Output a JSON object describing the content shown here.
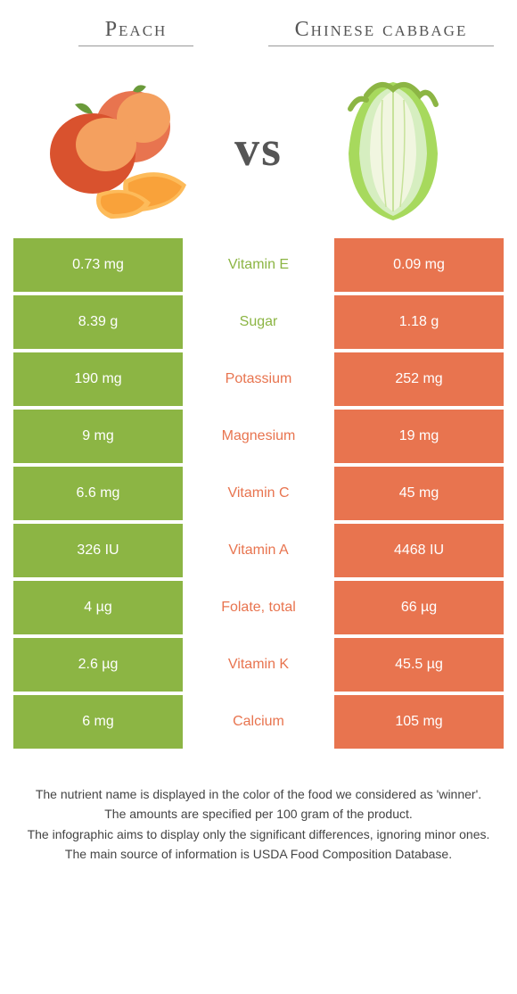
{
  "foods": {
    "left": {
      "name": "Peach",
      "color": "#8cb544"
    },
    "right": {
      "name": "Chinese cabbage",
      "color": "#e8744f"
    }
  },
  "vs_label": "vs",
  "rows": [
    {
      "nutrient": "Vitamin E",
      "left": "0.73 mg",
      "right": "0.09 mg",
      "winner": "left"
    },
    {
      "nutrient": "Sugar",
      "left": "8.39 g",
      "right": "1.18 g",
      "winner": "left"
    },
    {
      "nutrient": "Potassium",
      "left": "190 mg",
      "right": "252 mg",
      "winner": "right"
    },
    {
      "nutrient": "Magnesium",
      "left": "9 mg",
      "right": "19 mg",
      "winner": "right"
    },
    {
      "nutrient": "Vitamin C",
      "left": "6.6 mg",
      "right": "45 mg",
      "winner": "right"
    },
    {
      "nutrient": "Vitamin A",
      "left": "326 IU",
      "right": "4468 IU",
      "winner": "right"
    },
    {
      "nutrient": "Folate, total",
      "left": "4 µg",
      "right": "66 µg",
      "winner": "right"
    },
    {
      "nutrient": "Vitamin K",
      "left": "2.6 µg",
      "right": "45.5 µg",
      "winner": "right"
    },
    {
      "nutrient": "Calcium",
      "left": "6 mg",
      "right": "105 mg",
      "winner": "right"
    }
  ],
  "footnotes": [
    "The nutrient name is displayed in the color of the food we considered as 'winner'.",
    "The amounts are specified per 100 gram of the product.",
    "The infographic aims to display only the significant differences, ignoring minor ones.",
    "The main source of information is USDA Food Composition Database."
  ]
}
